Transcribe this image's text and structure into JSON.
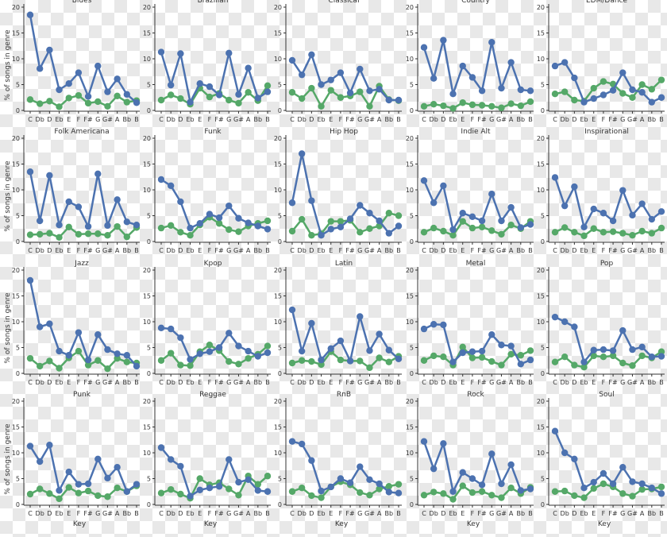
{
  "chart_data": {
    "type": "line",
    "xlabel": "Key",
    "ylabel": "% of songs in genre",
    "ylim": [
      0,
      20
    ],
    "yticks": [
      "0",
      "5",
      "10",
      "15",
      "20"
    ],
    "categories": [
      "C",
      "Db",
      "D",
      "Eb",
      "E",
      "F",
      "F#",
      "G",
      "G#",
      "A",
      "Bb",
      "B"
    ],
    "colors": {
      "series_1": "#4c72b0",
      "series_2": "#55a868"
    },
    "panels": [
      {
        "genre": "Blues",
        "series": [
          {
            "values": [
              18.5,
              8.1,
              11.7,
              4.0,
              5.2,
              7.3,
              2.7,
              8.6,
              3.6,
              6.1,
              3.1,
              1.5
            ]
          },
          {
            "values": [
              2.1,
              1.3,
              1.8,
              0.7,
              2.4,
              2.9,
              1.4,
              1.7,
              0.8,
              2.8,
              1.6,
              1.9
            ]
          }
        ]
      },
      {
        "genre": "Brazilian",
        "series": [
          {
            "values": [
              11.3,
              4.9,
              11.0,
              1.6,
              5.2,
              4.6,
              3.0,
              11.1,
              3.1,
              8.2,
              2.4,
              3.6
            ]
          },
          {
            "values": [
              2.0,
              3.0,
              2.3,
              1.2,
              4.3,
              2.6,
              3.3,
              2.0,
              1.4,
              3.5,
              1.9,
              4.8
            ]
          }
        ]
      },
      {
        "genre": "Classical",
        "series": [
          {
            "values": [
              9.7,
              6.9,
              10.8,
              5.0,
              5.9,
              7.3,
              3.4,
              8.0,
              3.8,
              4.1,
              2.0,
              2.0
            ]
          },
          {
            "values": [
              3.5,
              2.3,
              4.3,
              0.8,
              3.9,
              2.5,
              2.8,
              3.6,
              0.8,
              4.7,
              2.1,
              1.9
            ]
          }
        ]
      },
      {
        "genre": "Country",
        "series": [
          {
            "values": [
              12.2,
              6.2,
              13.6,
              3.2,
              8.6,
              6.4,
              3.8,
              13.2,
              4.3,
              9.3,
              4.0,
              3.8
            ]
          },
          {
            "values": [
              0.8,
              1.2,
              0.9,
              0.4,
              1.5,
              1.1,
              1.0,
              0.8,
              0.5,
              1.3,
              0.9,
              1.7
            ]
          }
        ]
      },
      {
        "genre": "EDM/Dance",
        "series": [
          {
            "values": [
              8.6,
              9.3,
              6.3,
              1.6,
              2.3,
              3.0,
              3.9,
              7.3,
              4.0,
              3.5,
              1.6,
              2.5
            ]
          },
          {
            "values": [
              3.2,
              3.6,
              2.0,
              1.8,
              4.3,
              5.6,
              5.1,
              3.3,
              2.5,
              5.0,
              4.1,
              5.9
            ]
          }
        ]
      },
      {
        "genre": "Folk Americana",
        "series": [
          {
            "values": [
              13.5,
              4.0,
              12.8,
              3.2,
              7.7,
              6.7,
              2.9,
              13.1,
              3.1,
              8.1,
              3.8,
              3.2
            ]
          },
          {
            "values": [
              1.3,
              1.4,
              1.6,
              0.8,
              2.8,
              1.4,
              1.5,
              1.5,
              1.2,
              2.9,
              0.9,
              2.7
            ]
          }
        ]
      },
      {
        "genre": "Funk",
        "series": [
          {
            "values": [
              12.0,
              10.8,
              7.7,
              2.6,
              3.5,
              5.3,
              4.6,
              6.9,
              4.5,
              3.6,
              3.0,
              2.4
            ]
          },
          {
            "values": [
              2.6,
              3.1,
              1.8,
              1.2,
              3.2,
              4.7,
              3.5,
              2.3,
              1.9,
              3.0,
              3.5,
              4.0
            ]
          }
        ]
      },
      {
        "genre": "Hip Hop",
        "series": [
          {
            "values": [
              7.5,
              17.0,
              7.9,
              1.2,
              2.4,
              2.8,
              4.4,
              7.0,
              5.5,
              4.0,
              1.6,
              3.0
            ]
          },
          {
            "values": [
              2.0,
              4.3,
              1.2,
              1.5,
              3.9,
              3.9,
              4.1,
              1.8,
              2.5,
              3.0,
              5.5,
              5.0
            ]
          }
        ]
      },
      {
        "genre": "Indie Alt",
        "series": [
          {
            "values": [
              11.8,
              7.5,
              10.8,
              2.3,
              5.5,
              4.8,
              4.0,
              9.2,
              4.0,
              6.6,
              2.7,
              3.3
            ]
          },
          {
            "values": [
              1.8,
              2.6,
              2.0,
              1.2,
              3.9,
              2.6,
              2.8,
              2.1,
              1.4,
              3.2,
              2.5,
              3.9
            ]
          }
        ]
      },
      {
        "genre": "Inspirational",
        "series": [
          {
            "values": [
              12.4,
              6.9,
              10.6,
              2.8,
              6.3,
              5.5,
              4.0,
              9.9,
              5.1,
              7.3,
              4.3,
              5.8
            ]
          },
          {
            "values": [
              1.8,
              2.7,
              1.8,
              1.1,
              2.5,
              1.8,
              1.9,
              1.6,
              1.2,
              2.0,
              1.6,
              2.6
            ]
          }
        ]
      },
      {
        "genre": "Jazz",
        "series": [
          {
            "values": [
              18.0,
              9.0,
              9.6,
              4.3,
              3.5,
              7.9,
              2.6,
              7.5,
              4.6,
              3.8,
              3.5,
              1.4
            ]
          },
          {
            "values": [
              2.9,
              1.4,
              2.4,
              1.0,
              3.0,
              4.3,
              1.6,
              2.5,
              0.9,
              2.9,
              2.2,
              2.0
            ]
          }
        ]
      },
      {
        "genre": "Kpop",
        "series": [
          {
            "values": [
              8.8,
              8.6,
              6.9,
              2.7,
              3.8,
              4.2,
              5.0,
              7.8,
              5.3,
              4.3,
              3.3,
              4.0
            ]
          },
          {
            "values": [
              2.5,
              3.9,
              1.6,
              1.5,
              4.2,
              5.5,
              4.4,
              2.3,
              1.8,
              2.9,
              3.7,
              5.3
            ]
          }
        ]
      },
      {
        "genre": "Latin",
        "series": [
          {
            "values": [
              12.3,
              4.3,
              9.7,
              2.6,
              4.8,
              6.3,
              2.4,
              11.0,
              4.4,
              7.6,
              4.5,
              2.8
            ]
          },
          {
            "values": [
              2.0,
              2.5,
              2.3,
              1.7,
              4.2,
              2.6,
              2.4,
              2.4,
              1.1,
              3.0,
              2.2,
              3.3
            ]
          }
        ]
      },
      {
        "genre": "Metal",
        "series": [
          {
            "values": [
              8.6,
              9.5,
              9.4,
              2.2,
              4.0,
              4.2,
              4.3,
              7.5,
              5.5,
              5.3,
              1.8,
              2.6
            ]
          },
          {
            "values": [
              2.5,
              3.4,
              3.2,
              1.6,
              5.1,
              3.0,
              3.1,
              2.3,
              1.6,
              3.7,
              3.5,
              4.4
            ]
          }
        ]
      },
      {
        "genre": "Pop",
        "series": [
          {
            "values": [
              10.9,
              10.0,
              9.0,
              2.2,
              4.5,
              4.6,
              4.4,
              8.3,
              4.6,
              5.1,
              3.2,
              3.3
            ]
          },
          {
            "values": [
              2.2,
              3.2,
              1.6,
              1.2,
              3.4,
              3.2,
              3.4,
              2.0,
              1.5,
              3.4,
              3.0,
              4.2
            ]
          }
        ]
      },
      {
        "genre": "Punk",
        "series": [
          {
            "values": [
              11.3,
              8.3,
              11.5,
              2.7,
              6.3,
              3.9,
              4.0,
              8.8,
              5.1,
              7.2,
              2.5,
              3.9
            ]
          },
          {
            "values": [
              2.0,
              3.0,
              2.1,
              1.1,
              3.3,
              2.2,
              2.6,
              1.7,
              1.5,
              3.2,
              2.5,
              3.6
            ]
          }
        ]
      },
      {
        "genre": "Reggae",
        "series": [
          {
            "values": [
              11.0,
              8.7,
              7.4,
              1.6,
              2.8,
              3.2,
              3.5,
              8.7,
              4.3,
              4.8,
              2.7,
              2.5
            ]
          },
          {
            "values": [
              2.2,
              2.9,
              2.0,
              1.2,
              5.0,
              3.8,
              4.2,
              3.0,
              1.8,
              5.5,
              3.9,
              5.5
            ]
          }
        ]
      },
      {
        "genre": "RnB",
        "series": [
          {
            "values": [
              12.2,
              11.7,
              8.5,
              2.6,
              3.4,
              5.0,
              4.2,
              7.3,
              4.8,
              4.0,
              2.4,
              2.2
            ]
          },
          {
            "values": [
              2.5,
              3.2,
              1.7,
              1.3,
              3.4,
              4.4,
              3.8,
              2.3,
              1.8,
              3.0,
              3.5,
              3.9
            ]
          }
        ]
      },
      {
        "genre": "Rock",
        "series": [
          {
            "values": [
              12.2,
              6.9,
              11.8,
              2.5,
              6.2,
              5.0,
              3.8,
              9.8,
              4.0,
              7.7,
              2.7,
              3.0
            ]
          },
          {
            "values": [
              1.8,
              2.4,
              2.1,
              1.0,
              3.6,
              2.3,
              2.5,
              1.8,
              1.3,
              3.2,
              2.1,
              3.3
            ]
          }
        ]
      },
      {
        "genre": "Soul",
        "series": [
          {
            "values": [
              14.2,
              10.0,
              8.8,
              3.2,
              4.3,
              6.0,
              4.0,
              7.2,
              4.4,
              4.0,
              3.2,
              2.1
            ]
          },
          {
            "values": [
              2.5,
              2.6,
              1.7,
              1.3,
              3.1,
              4.0,
              3.4,
              2.1,
              1.6,
              2.9,
              3.0,
              3.4
            ]
          }
        ]
      }
    ]
  }
}
